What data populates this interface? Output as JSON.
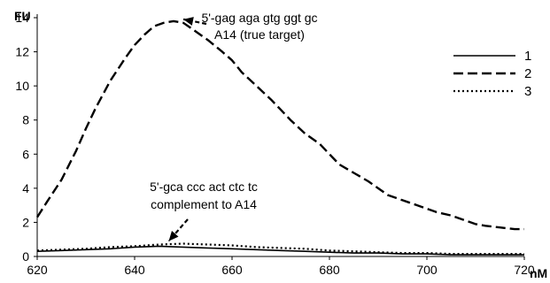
{
  "chart_data": {
    "type": "line",
    "ylabel": "FU",
    "xlabel": "nM",
    "xlim": [
      620,
      720
    ],
    "ylim": [
      0,
      14
    ],
    "xticks": [
      "620",
      "640",
      "660",
      "680",
      "700",
      "720"
    ],
    "yticks": [
      "0",
      "2",
      "4",
      "6",
      "8",
      "10",
      "12",
      "14"
    ],
    "grid": false,
    "legend_position": "right",
    "series": [
      {
        "name": "1",
        "style": "solid",
        "x": [
          620,
          625,
          630,
          635,
          640,
          645,
          650,
          655,
          660,
          665,
          670,
          675,
          680,
          685,
          690,
          695,
          700,
          705,
          710,
          715,
          720
        ],
        "values": [
          0.3,
          0.35,
          0.4,
          0.45,
          0.55,
          0.6,
          0.55,
          0.5,
          0.45,
          0.4,
          0.35,
          0.3,
          0.25,
          0.2,
          0.2,
          0.15,
          0.15,
          0.1,
          0.1,
          0.1,
          0.1
        ]
      },
      {
        "name": "2",
        "style": "dashed",
        "x": [
          620,
          622,
          625,
          628,
          630,
          632,
          635,
          638,
          640,
          642,
          644,
          646,
          648,
          650,
          652,
          655,
          658,
          660,
          662,
          665,
          668,
          670,
          672,
          675,
          678,
          680,
          682,
          685,
          688,
          690,
          692,
          695,
          698,
          700,
          702,
          705,
          708,
          710,
          712,
          715,
          718,
          720
        ],
        "values": [
          2.3,
          3.2,
          4.5,
          6.2,
          7.5,
          8.7,
          10.3,
          11.6,
          12.4,
          13.0,
          13.5,
          13.7,
          13.8,
          13.7,
          13.3,
          12.7,
          12.0,
          11.5,
          10.8,
          10.0,
          9.2,
          8.6,
          8.0,
          7.2,
          6.6,
          6.0,
          5.4,
          4.9,
          4.4,
          4.0,
          3.6,
          3.3,
          3.0,
          2.8,
          2.6,
          2.4,
          2.1,
          1.9,
          1.8,
          1.7,
          1.6,
          1.6
        ]
      },
      {
        "name": "3",
        "style": "dotted",
        "x": [
          620,
          625,
          630,
          635,
          640,
          645,
          650,
          655,
          660,
          665,
          670,
          675,
          680,
          685,
          690,
          695,
          700,
          705,
          710,
          715,
          720
        ],
        "values": [
          0.35,
          0.4,
          0.45,
          0.55,
          0.6,
          0.7,
          0.75,
          0.7,
          0.65,
          0.55,
          0.5,
          0.45,
          0.35,
          0.3,
          0.25,
          0.2,
          0.2,
          0.15,
          0.15,
          0.15,
          0.15
        ]
      }
    ],
    "annotations": [
      {
        "lines": [
          "5'-gag aga gtg ggt gc",
          "A14 (true target)"
        ],
        "points_to": {
          "x": 650,
          "y": 13.8
        }
      },
      {
        "lines": [
          "5'-gca ccc act ctc tc",
          "complement to A14"
        ],
        "points_to": {
          "x": 647,
          "y": 0.8
        }
      }
    ]
  }
}
